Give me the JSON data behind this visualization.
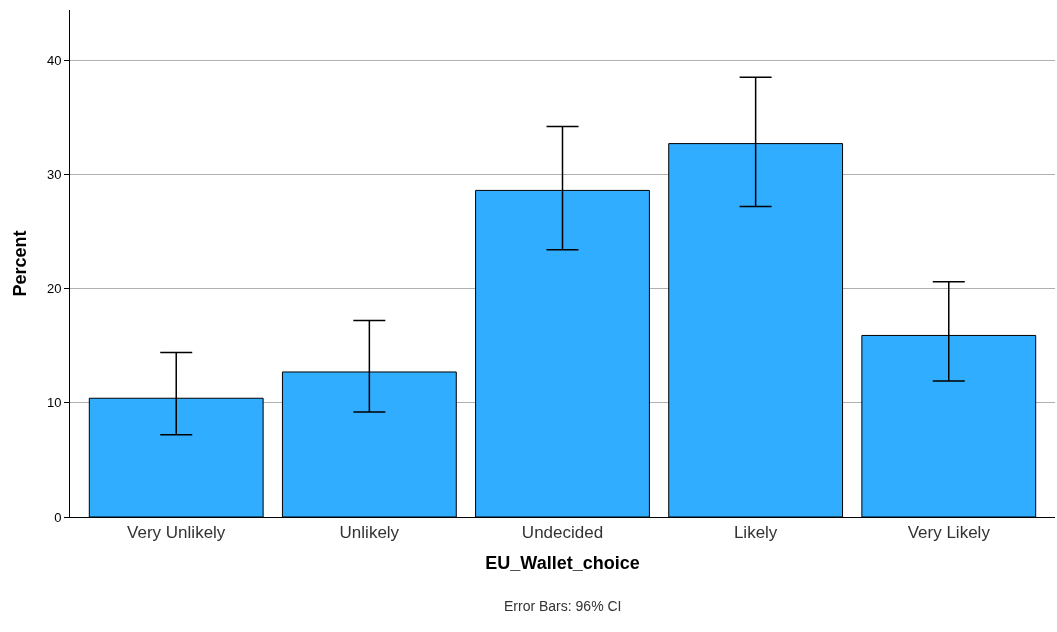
{
  "chart_data": {
    "type": "bar",
    "xlabel": "EU_Wallet_choice",
    "ylabel": "Percent",
    "categories": [
      "Very Unlikely",
      "Unlikely",
      "Undecided",
      "Likely",
      "Very Likely"
    ],
    "values": [
      10.4,
      12.7,
      28.6,
      32.7,
      15.9
    ],
    "errors": [
      [
        7.2,
        14.4
      ],
      [
        9.2,
        17.2
      ],
      [
        23.4,
        34.2
      ],
      [
        27.2,
        38.5
      ],
      [
        11.9,
        20.6
      ]
    ],
    "color": "#30adff",
    "ylim": [
      0,
      44.4
    ],
    "yticks": [
      0,
      10,
      20,
      30,
      40
    ],
    "grid": "y",
    "annotations": [
      "Error Bars: 96% CI"
    ]
  }
}
